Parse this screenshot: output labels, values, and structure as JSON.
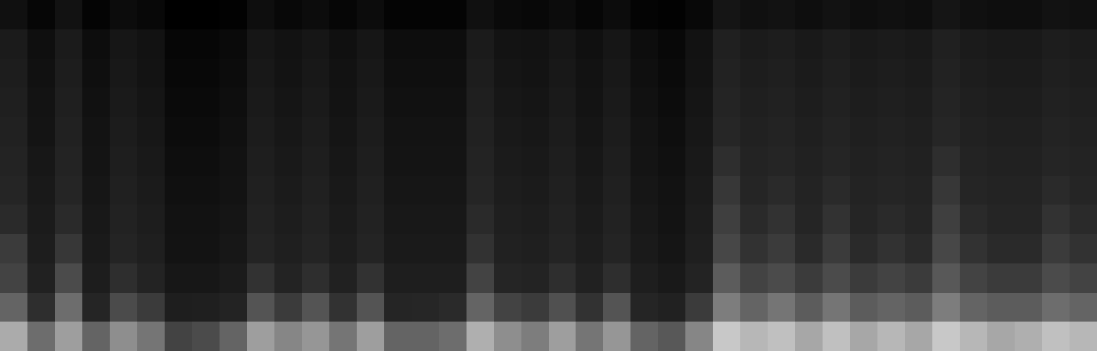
{
  "chart_data": {
    "type": "heatmap",
    "tick_labels": false,
    "grid": false,
    "cells": [
      [
        75,
        60,
        72,
        58,
        68,
        62,
        50,
        52,
        58,
        72,
        66,
        70,
        62,
        72,
        58,
        58,
        60,
        76,
        68,
        64,
        72,
        62,
        70,
        58,
        55,
        66,
        82,
        78,
        80,
        74,
        80,
        74,
        78,
        74,
        82,
        78,
        74,
        76,
        80,
        78
      ],
      [
        58,
        45,
        60,
        42,
        52,
        48,
        35,
        36,
        40,
        54,
        48,
        54,
        46,
        54,
        42,
        43,
        44,
        58,
        50,
        48,
        53,
        46,
        54,
        42,
        38,
        48,
        64,
        58,
        62,
        56,
        62,
        56,
        58,
        56,
        64,
        58,
        56,
        56,
        60,
        58
      ],
      [
        50,
        38,
        52,
        34,
        45,
        40,
        28,
        28,
        32,
        46,
        40,
        45,
        38,
        46,
        35,
        35,
        35,
        50,
        42,
        40,
        45,
        38,
        45,
        35,
        30,
        40,
        56,
        50,
        52,
        48,
        52,
        48,
        50,
        48,
        55,
        50,
        48,
        48,
        52,
        50
      ],
      [
        48,
        34,
        47,
        31,
        41,
        36,
        24,
        24,
        28,
        41,
        36,
        41,
        34,
        41,
        31,
        31,
        31,
        46,
        38,
        36,
        41,
        34,
        41,
        31,
        26,
        36,
        51,
        46,
        48,
        44,
        48,
        44,
        46,
        44,
        51,
        46,
        44,
        44,
        48,
        46
      ],
      [
        44,
        32,
        44,
        29,
        39,
        34,
        22,
        22,
        26,
        39,
        34,
        39,
        32,
        39,
        29,
        29,
        29,
        44,
        36,
        34,
        39,
        32,
        39,
        29,
        24,
        34,
        49,
        44,
        46,
        42,
        46,
        42,
        44,
        42,
        49,
        44,
        42,
        42,
        46,
        44
      ],
      [
        42,
        30,
        42,
        27,
        37,
        32,
        20,
        20,
        24,
        37,
        32,
        37,
        30,
        37,
        27,
        27,
        27,
        42,
        34,
        32,
        37,
        30,
        37,
        27,
        22,
        32,
        47,
        42,
        44,
        40,
        44,
        40,
        42,
        40,
        47,
        42,
        40,
        40,
        44,
        42
      ],
      [
        40,
        28,
        40,
        25,
        35,
        30,
        18,
        18,
        22,
        35,
        30,
        35,
        28,
        35,
        25,
        25,
        25,
        40,
        32,
        30,
        35,
        28,
        35,
        25,
        20,
        30,
        45,
        40,
        42,
        38,
        42,
        38,
        40,
        38,
        45,
        40,
        38,
        38,
        42,
        40
      ],
      [
        38,
        25,
        38,
        23,
        33,
        28,
        16,
        16,
        20,
        33,
        28,
        33,
        26,
        33,
        23,
        23,
        23,
        38,
        30,
        28,
        33,
        26,
        33,
        23,
        18,
        28,
        43,
        38,
        40,
        36,
        40,
        36,
        38,
        36,
        43,
        38,
        36,
        36,
        40,
        38
      ],
      [
        36,
        23,
        36,
        21,
        31,
        26,
        14,
        14,
        18,
        31,
        26,
        31,
        24,
        31,
        21,
        21,
        21,
        36,
        28,
        26,
        31,
        24,
        31,
        21,
        16,
        26,
        41,
        36,
        38,
        34,
        38,
        34,
        36,
        34,
        41,
        36,
        34,
        34,
        38,
        36
      ],
      [
        34,
        21,
        34,
        19,
        29,
        24,
        12,
        12,
        16,
        29,
        24,
        29,
        22,
        29,
        19,
        19,
        19,
        34,
        26,
        24,
        29,
        22,
        29,
        19,
        14,
        24,
        39,
        34,
        36,
        32,
        36,
        32,
        34,
        32,
        39,
        34,
        32,
        32,
        36,
        34
      ],
      [
        32,
        19,
        32,
        17,
        27,
        22,
        10,
        10,
        14,
        27,
        22,
        27,
        20,
        27,
        17,
        17,
        17,
        32,
        24,
        22,
        27,
        20,
        27,
        17,
        12,
        22,
        37,
        32,
        34,
        30,
        34,
        30,
        32,
        30,
        37,
        32,
        30,
        30,
        34,
        32
      ],
      [
        20,
        10,
        22,
        8,
        16,
        12,
        4,
        4,
        6,
        18,
        12,
        16,
        10,
        16,
        8,
        8,
        8,
        20,
        14,
        12,
        16,
        10,
        16,
        8,
        6,
        12,
        26,
        20,
        22,
        18,
        22,
        18,
        20,
        18,
        26,
        20,
        18,
        18,
        22,
        20
      ]
    ]
  }
}
